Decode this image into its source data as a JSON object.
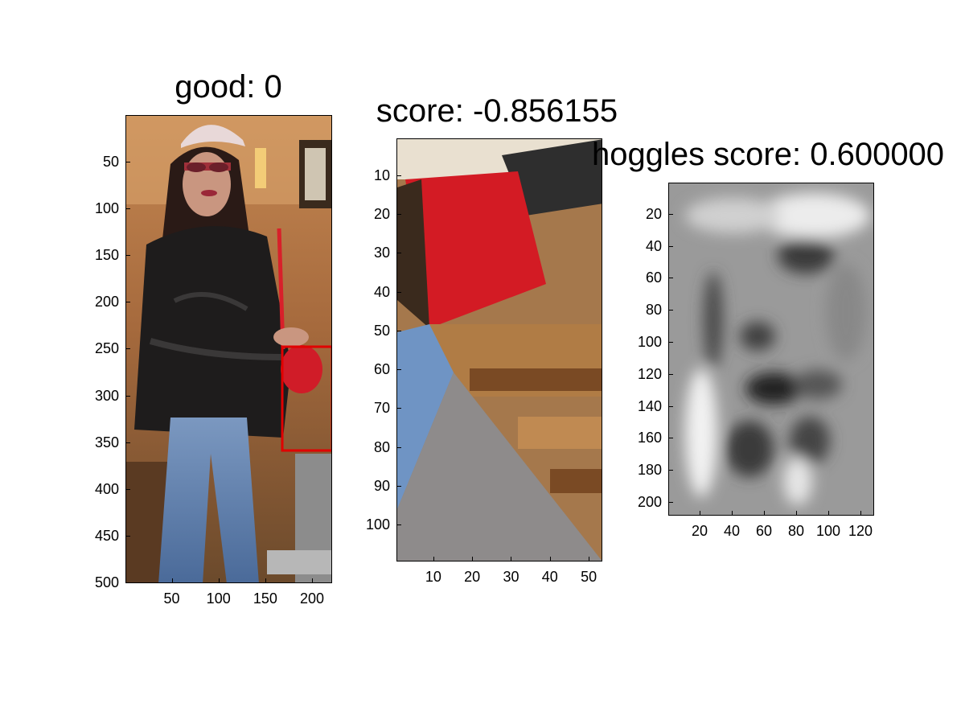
{
  "chart_data": [
    {
      "type": "image",
      "title": "good: 0",
      "x_ticks": [
        50,
        100,
        150,
        200
      ],
      "y_ticks": [
        50,
        100,
        150,
        200,
        250,
        300,
        350,
        400,
        450,
        500
      ],
      "xlim": [
        0.5,
        221.5
      ],
      "ylim": [
        0.5,
        500.5
      ],
      "image_content": "photo of a person with cap, red sunglasses, black leather jacket, blue jeans, red bag",
      "detection_box": {
        "x": [
          166,
          221
        ],
        "y": [
          246,
          357
        ],
        "color": "#e00000"
      }
    },
    {
      "type": "image",
      "title": "score: -0.856155",
      "x_ticks": [
        10,
        20,
        30,
        40,
        50
      ],
      "y_ticks": [
        10,
        20,
        30,
        40,
        50,
        60,
        70,
        80,
        90,
        100
      ],
      "xlim": [
        0.5,
        53.5
      ],
      "ylim": [
        0.5,
        109.5
      ],
      "image_content": "zoomed crop: red bag, blue jeans, wooden floor, gray wall"
    },
    {
      "type": "heatmap",
      "title": "hoggles score: 0.600000",
      "x_ticks": [
        20,
        40,
        60,
        80,
        100,
        120
      ],
      "y_ticks": [
        20,
        40,
        60,
        80,
        100,
        120,
        140,
        160,
        180,
        200
      ],
      "xlim": [
        0.5,
        128.5
      ],
      "ylim": [
        0.5,
        208.5
      ],
      "colormap": "gray",
      "image_content": "grayscale HOG inversion reconstruction"
    }
  ]
}
